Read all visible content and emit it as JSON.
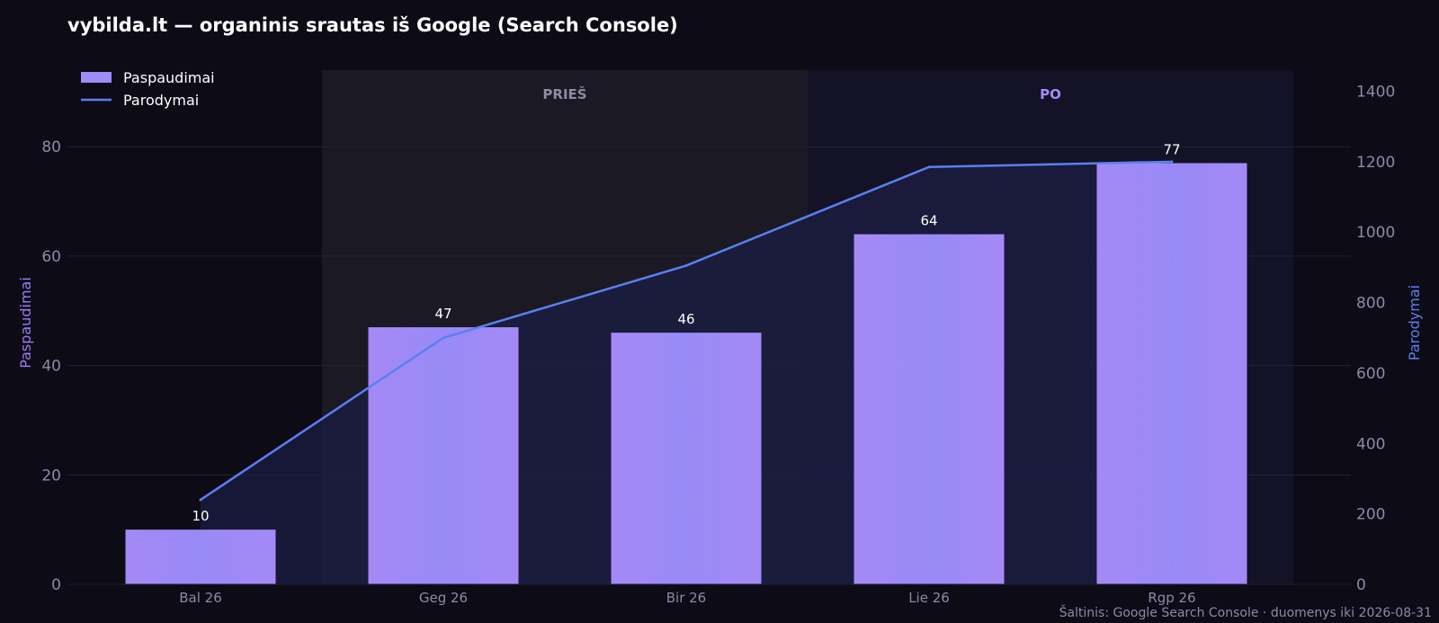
{
  "title": "vybilda.lt — organinis srautas iš Google (Search Console)",
  "source_note": "Šaltinis: Google Search Console · duomenys iki 2026-08-31",
  "colors": {
    "background": "#0c0b16",
    "bar": "#9d8cfa",
    "bar_gradient_left": "#a78bfa",
    "bar_gradient_right": "#9b8cfa",
    "line": "#5b7ff0",
    "area_fill": "#1b1e44",
    "left_axis_label": "#9a7cf2",
    "right_axis_label": "#5b7ff0",
    "tick": "#8c8aa6",
    "grid": "#25243a",
    "period_before": "#1a1924",
    "period_after": "#141227",
    "period_before_label": "#8e8ca3",
    "period_after_label": "#a78bfa"
  },
  "chart_data": {
    "type": "bar",
    "title": "vybilda.lt — organinis srautas iš Google (Search Console)",
    "categories": [
      "Bal 26",
      "Geg 26",
      "Bir 26",
      "Lie 26",
      "Rgp 26"
    ],
    "series": [
      {
        "name": "Paspaudimai",
        "type": "bar",
        "axis": "left",
        "values": [
          10,
          47,
          46,
          64,
          77
        ],
        "data_labels": [
          "10",
          "47",
          "46",
          "64",
          "77"
        ]
      },
      {
        "name": "Parodymai",
        "type": "line",
        "axis": "right",
        "values": [
          240,
          700,
          905,
          1185,
          1200
        ]
      }
    ],
    "y_left": {
      "label": "Paspaudimai",
      "range": [
        0,
        94
      ],
      "ticks": [
        "0",
        "20",
        "40",
        "60",
        "80"
      ]
    },
    "y_right": {
      "label": "Parodymai",
      "range": [
        0,
        1460
      ],
      "ticks": [
        "0",
        "200",
        "400",
        "600",
        "800",
        "1000",
        "1200",
        "1400"
      ]
    },
    "periods": [
      {
        "label": "PRIEŠ",
        "from": "Geg 26",
        "to": "Bir 26"
      },
      {
        "label": "PO",
        "from": "Lie 26",
        "to": "Rgp 26"
      }
    ],
    "legend": {
      "position": "top-left",
      "entries": [
        "Paspaudimai",
        "Parodymai"
      ]
    },
    "grid": true
  }
}
